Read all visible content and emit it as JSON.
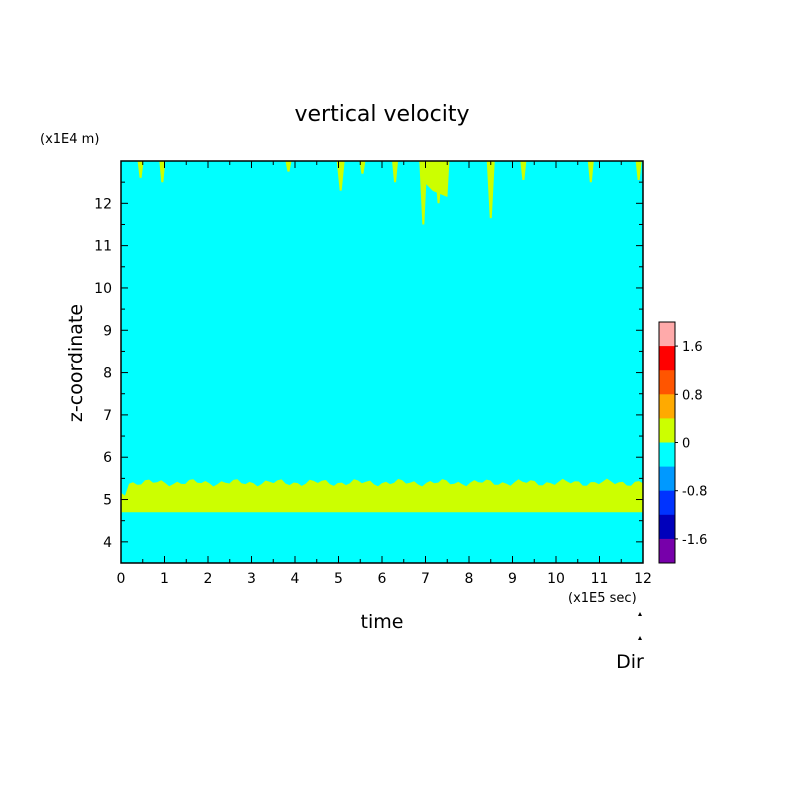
{
  "chart_data": {
    "type": "heatmap",
    "title": "vertical velocity",
    "xlabel": "time",
    "ylabel": "z-coordinate",
    "x_unit": "(x1E5 sec)",
    "y_unit": "(x1E4 m)",
    "xlim": [
      0,
      12
    ],
    "ylim": [
      3.5,
      13
    ],
    "x_ticks": [
      "0",
      "1",
      "2",
      "3",
      "4",
      "5",
      "6",
      "7",
      "8",
      "9",
      "10",
      "11",
      "12"
    ],
    "y_ticks": [
      "4",
      "5",
      "6",
      "7",
      "8",
      "9",
      "10",
      "11",
      "12"
    ],
    "background_level_color": "#00ffff",
    "positive_band": {
      "color": "#ccff00",
      "z_bottom": 4.7,
      "z_top_approx": 5.4
    },
    "upper_plumes": [
      {
        "t": 0.45,
        "z_min": 12.6
      },
      {
        "t": 0.95,
        "z_min": 12.5
      },
      {
        "t": 3.85,
        "z_min": 12.75
      },
      {
        "t": 5.05,
        "z_min": 12.3
      },
      {
        "t": 5.55,
        "z_min": 12.7
      },
      {
        "t": 6.3,
        "z_min": 12.5
      },
      {
        "t": 6.95,
        "z_min": 11.5
      },
      {
        "t": 7.3,
        "z_min": 12.0
      },
      {
        "t": 8.5,
        "z_min": 11.65
      },
      {
        "t": 9.25,
        "z_min": 12.55
      },
      {
        "t": 10.8,
        "z_min": 12.5
      },
      {
        "t": 11.9,
        "z_min": 12.55
      }
    ],
    "colorbar": {
      "tick_labels": [
        "1.6",
        "0.8",
        "0",
        "-0.8",
        "-1.6"
      ],
      "colors": [
        "#ffaaaa",
        "#ff0000",
        "#ff5500",
        "#ffaa00",
        "#ccff00",
        "#00ffff",
        "#0099ff",
        "#0033ff",
        "#0000bb",
        "#7700aa"
      ]
    },
    "annotation": "Dir"
  }
}
